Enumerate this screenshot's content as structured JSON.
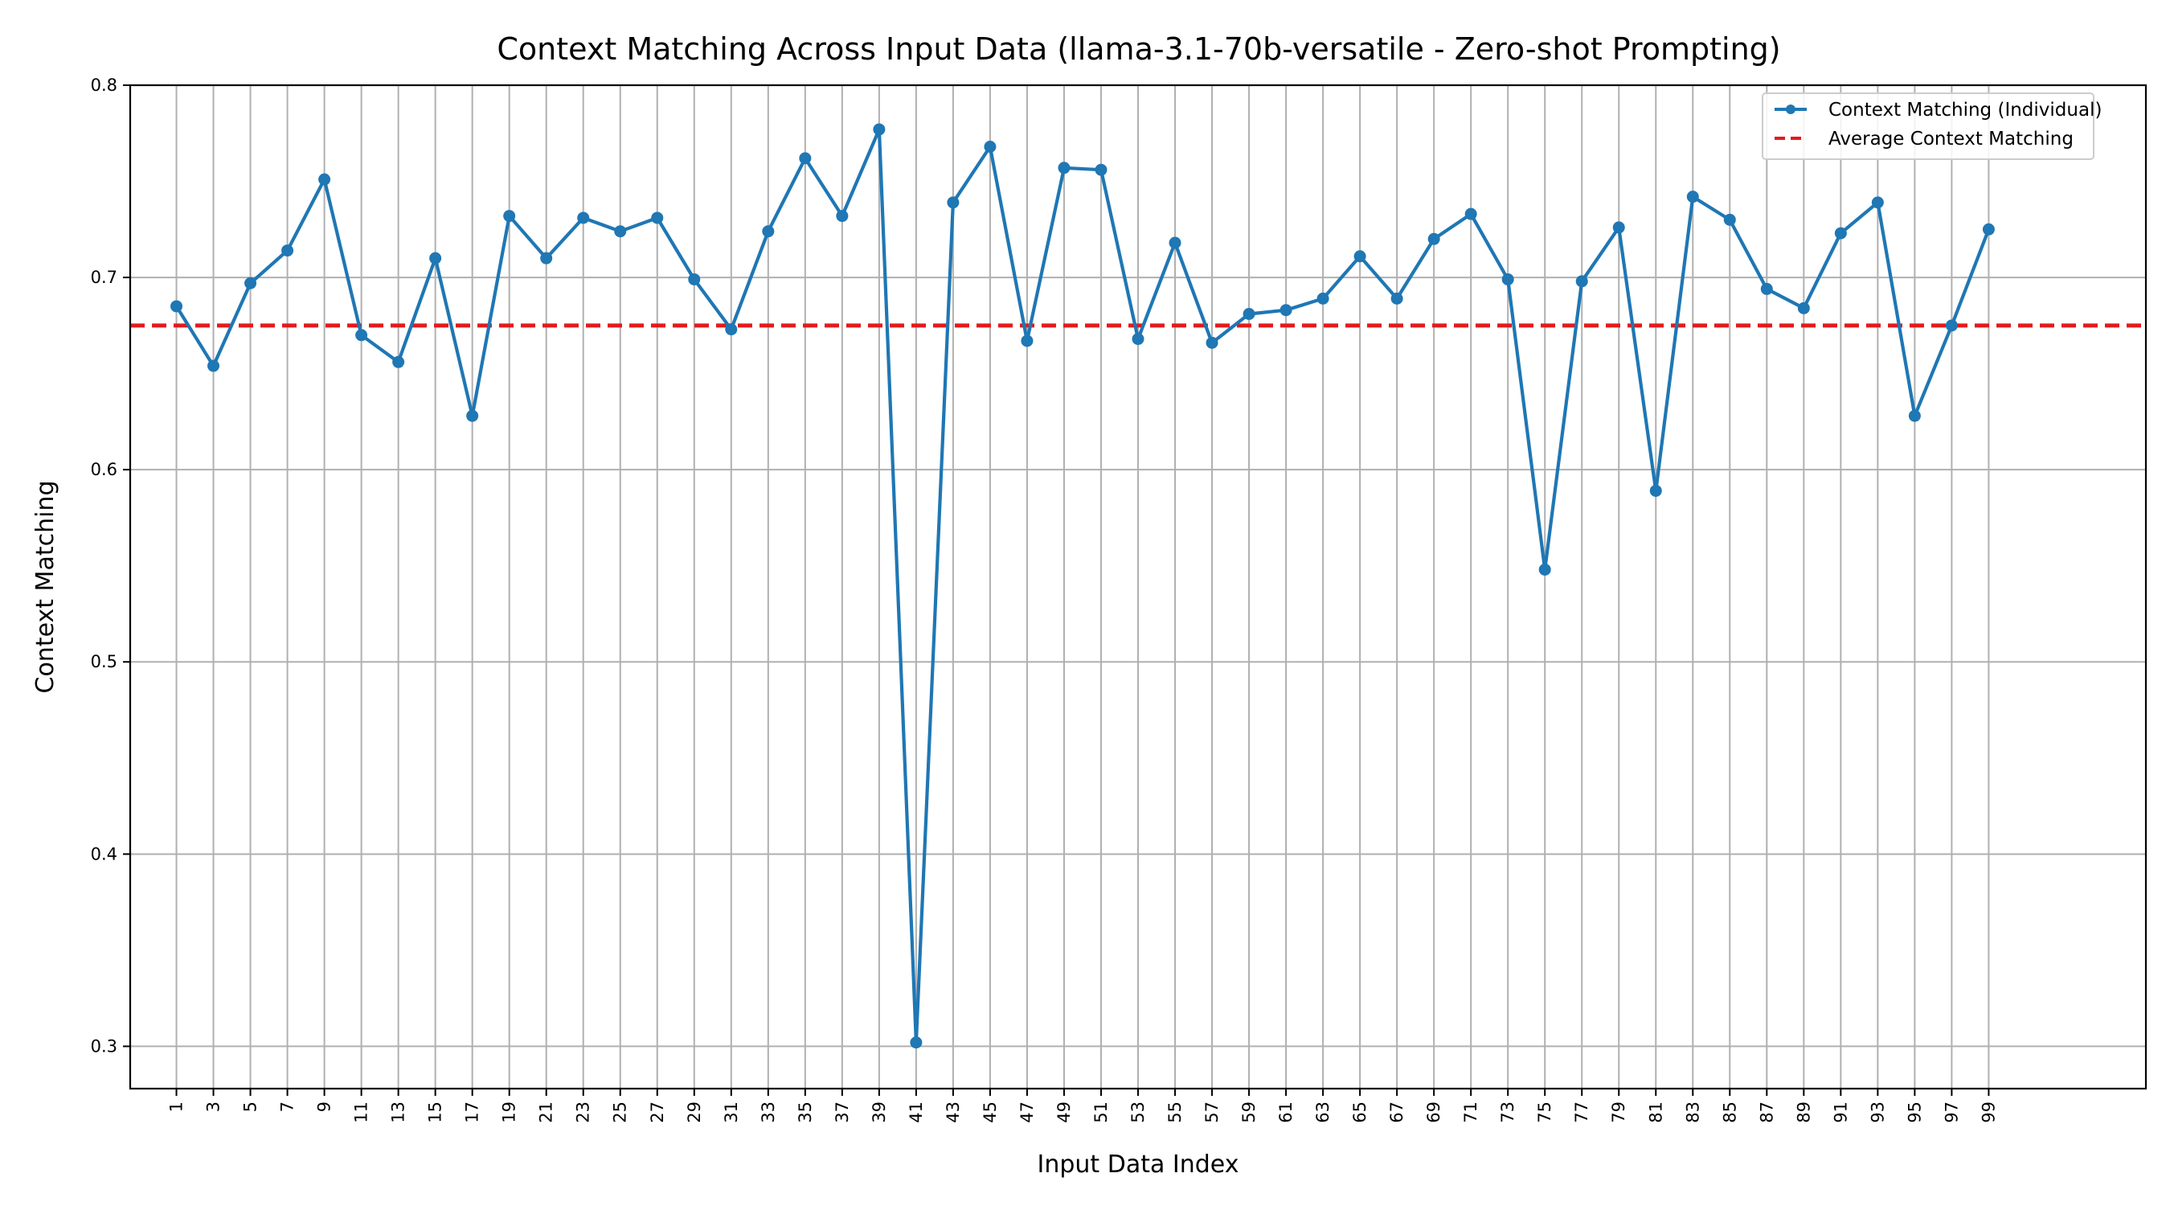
{
  "chart_data": {
    "type": "line",
    "title": "Context Matching Across Input Data (llama-3.1-70b-versatile - Zero-shot Prompting)",
    "xlabel": "Input Data Index",
    "ylabel": "Context Matching",
    "xlim": [
      -1.5,
      107.5
    ],
    "ylim": [
      0.278,
      0.8
    ],
    "x_ticks": [
      1,
      3,
      5,
      7,
      9,
      11,
      13,
      15,
      17,
      19,
      21,
      23,
      25,
      27,
      29,
      31,
      33,
      35,
      37,
      39,
      41,
      43,
      45,
      47,
      49,
      51,
      53,
      55,
      57,
      59,
      61,
      63,
      65,
      67,
      69,
      71,
      73,
      75,
      77,
      79,
      81,
      83,
      85,
      87,
      89,
      91,
      93,
      95,
      97,
      99
    ],
    "y_ticks": [
      0.3,
      0.4,
      0.5,
      0.6,
      0.7,
      0.8
    ],
    "y_tick_labels": [
      "0.3",
      "0.4",
      "0.5",
      "0.6",
      "0.7",
      "0.8"
    ],
    "grid": true,
    "legend_position": "top-right",
    "series": [
      {
        "name": "Context Matching (Individual)",
        "color": "#1f77b4",
        "style": "solid-with-markers",
        "x": [
          1,
          3,
          5,
          7,
          9,
          11,
          13,
          15,
          17,
          19,
          21,
          23,
          25,
          27,
          29,
          31,
          33,
          35,
          37,
          39,
          41,
          43,
          45,
          47,
          49,
          51,
          53,
          55,
          57,
          59,
          61,
          63,
          65,
          67,
          69,
          71,
          73,
          75,
          77,
          79,
          81,
          83,
          85,
          87,
          89,
          91,
          93,
          95,
          97,
          99
        ],
        "values": [
          0.685,
          0.654,
          0.697,
          0.714,
          0.751,
          0.67,
          0.656,
          0.71,
          0.628,
          0.732,
          0.71,
          0.731,
          0.724,
          0.731,
          0.699,
          0.673,
          0.724,
          0.762,
          0.732,
          0.777,
          0.302,
          0.739,
          0.768,
          0.667,
          0.757,
          0.756,
          0.668,
          0.718,
          0.666,
          0.681,
          0.683,
          0.689,
          0.711,
          0.689,
          0.72,
          0.733,
          0.699,
          0.548,
          0.698,
          0.726,
          0.589,
          0.742,
          0.73,
          0.694,
          0.684,
          0.723,
          0.739,
          0.628,
          0.675,
          0.725
        ]
      },
      {
        "name": "Average Context Matching",
        "color": "#e31a1c",
        "style": "dashed",
        "constant": 0.675
      }
    ]
  }
}
